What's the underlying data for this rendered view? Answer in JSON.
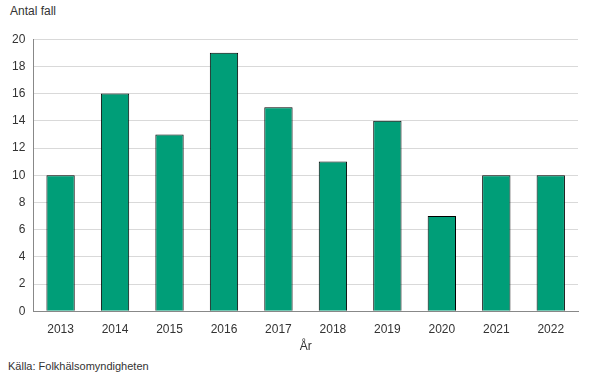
{
  "chart_data": {
    "type": "bar",
    "y_label": "Antal fall",
    "x_label": "År",
    "source": "Källa: Folkhälsomyndigheten",
    "categories": [
      "2013",
      "2014",
      "2015",
      "2016",
      "2017",
      "2018",
      "2019",
      "2020",
      "2021",
      "2022"
    ],
    "values": [
      10,
      16,
      13,
      19,
      15,
      11,
      14,
      7,
      10,
      10
    ],
    "color": "#009e78",
    "ylim": [
      0,
      20
    ],
    "yticks": [
      0,
      2,
      4,
      6,
      8,
      10,
      12,
      14,
      16,
      18,
      20
    ],
    "grid": true
  }
}
